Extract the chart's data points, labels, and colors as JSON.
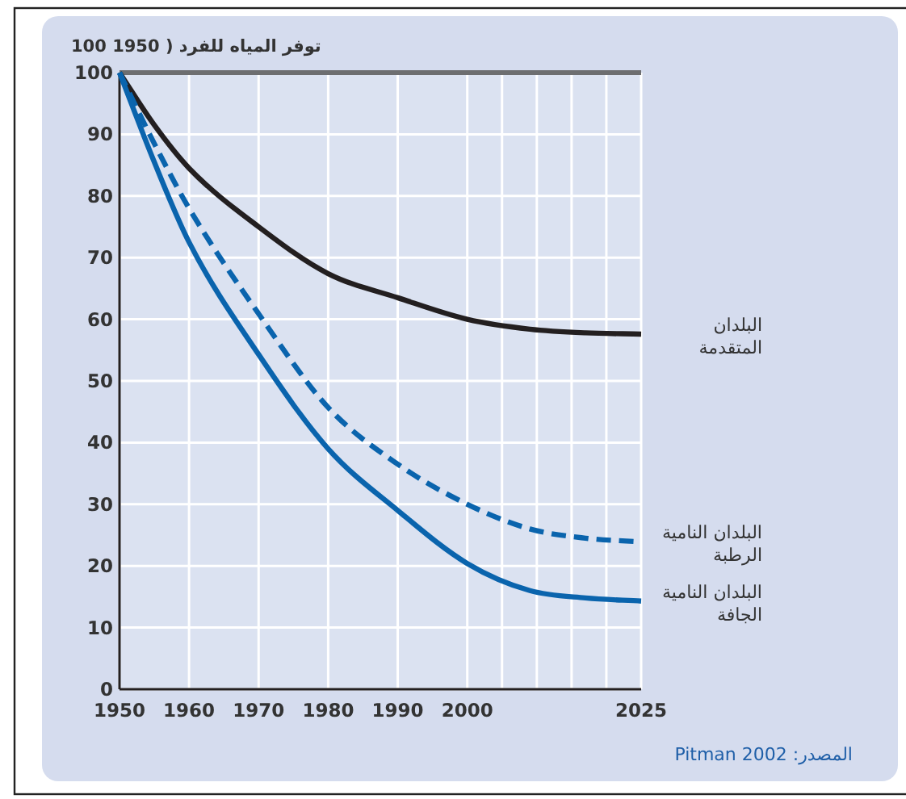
{
  "chart_data": {
    "type": "line",
    "ylabel": "100 1950 ) توفر المياه للفرد",
    "annotations": [
      "المصدر: Pitman 2002"
    ],
    "xlim": [
      1950,
      2025
    ],
    "ylim": [
      0,
      100
    ],
    "xticks": [
      1950,
      1960,
      1970,
      1980,
      1990,
      2000,
      {
        "value": 2005,
        "label": null
      },
      {
        "value": 2010,
        "label": null
      },
      {
        "value": 2015,
        "label": null
      },
      {
        "value": 2020,
        "label": null
      },
      2025
    ],
    "yticks": [
      0,
      10,
      20,
      30,
      40,
      50,
      60,
      70,
      80,
      90,
      100
    ],
    "grid": true,
    "ref_lines": [
      {
        "axis": "y",
        "value": 100,
        "color": "#6d6e70"
      }
    ],
    "series": [
      {
        "name": "البلدان المتقدمة",
        "color": "#231f20",
        "line_style": "solid",
        "x": [
          1950,
          1955,
          1960,
          1970,
          1980,
          1990,
          2000,
          2009,
          2017,
          2025
        ],
        "values": [
          100,
          91.5,
          84.5,
          75,
          67.4,
          63.5,
          60,
          58.4,
          57.8,
          57.6
        ]
      },
      {
        "name": "البلدان النامية الرطبة",
        "color": "#0a64ad",
        "line_style": "dashed",
        "x": [
          1950,
          1955,
          1960,
          1970,
          1980,
          1990,
          2000,
          2009,
          2017,
          2025
        ],
        "values": [
          100,
          88.5,
          78,
          60.9,
          45.7,
          36.5,
          30,
          26,
          24.5,
          23.9
        ]
      },
      {
        "name": "البلدان النامية الجافة",
        "color": "#0a64ad",
        "line_style": "solid",
        "x": [
          1950,
          1955,
          1960,
          1970,
          1980,
          1990,
          2000,
          2009,
          2017,
          2025
        ],
        "values": [
          100,
          85.5,
          72.5,
          54.3,
          39,
          29,
          20.4,
          16,
          14.8,
          14.3
        ]
      }
    ]
  }
}
